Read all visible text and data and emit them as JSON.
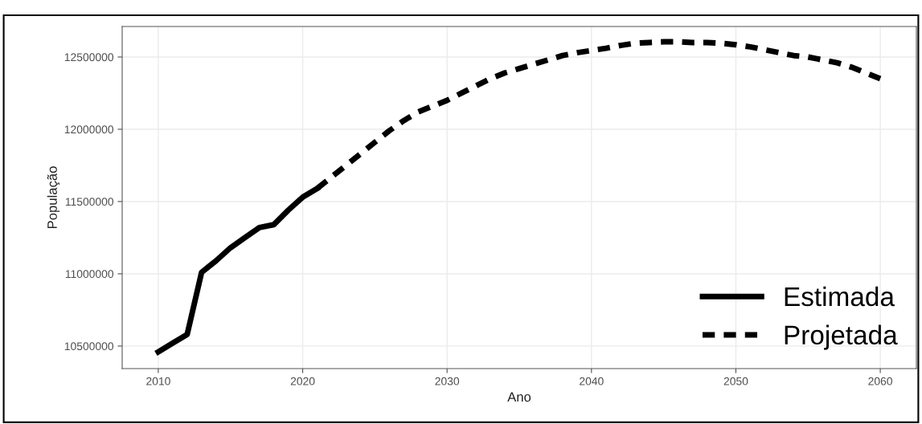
{
  "chart_data": {
    "type": "line",
    "xlabel": "Ano",
    "ylabel": "População",
    "xlim": [
      2007.5,
      2062.5
    ],
    "ylim": [
      10344000,
      12711000
    ],
    "xticks": [
      2010,
      2020,
      2030,
      2040,
      2050,
      2060
    ],
    "yticks": [
      10500000,
      11000000,
      11500000,
      12000000,
      12500000
    ],
    "grid": true,
    "legend": "bottom right",
    "series": [
      {
        "name": "Estimada",
        "color": "#000000",
        "line_style": "solid",
        "x": [
          2010,
          2011,
          2012,
          2013,
          2014,
          2015,
          2016,
          2017,
          2018,
          2019,
          2020,
          2021
        ],
        "values": [
          10460000,
          10520000,
          10580000,
          11010000,
          11090000,
          11180000,
          11250000,
          11320000,
          11340000,
          11440000,
          11530000,
          11590000
        ]
      },
      {
        "name": "Projetada",
        "color": "#000000",
        "line_style": "dashed",
        "x": [
          2021,
          2022,
          2023,
          2024,
          2025,
          2026,
          2027,
          2028,
          2029,
          2030,
          2031,
          2032,
          2033,
          2034,
          2035,
          2036,
          2037,
          2038,
          2039,
          2040,
          2041,
          2042,
          2043,
          2044,
          2045,
          2046,
          2047,
          2048,
          2049,
          2050,
          2051,
          2052,
          2053,
          2054,
          2055,
          2056,
          2057,
          2058,
          2059,
          2060
        ],
        "values": [
          11590000,
          11670000,
          11750000,
          11830000,
          11910000,
          11990000,
          12060000,
          12120000,
          12160000,
          12200000,
          12250000,
          12300000,
          12350000,
          12390000,
          12420000,
          12450000,
          12480000,
          12510000,
          12530000,
          12545000,
          12560000,
          12580000,
          12595000,
          12600000,
          12605000,
          12605000,
          12600000,
          12600000,
          12595000,
          12585000,
          12570000,
          12550000,
          12530000,
          12510000,
          12500000,
          12480000,
          12460000,
          12430000,
          12390000,
          12350000
        ]
      }
    ]
  }
}
